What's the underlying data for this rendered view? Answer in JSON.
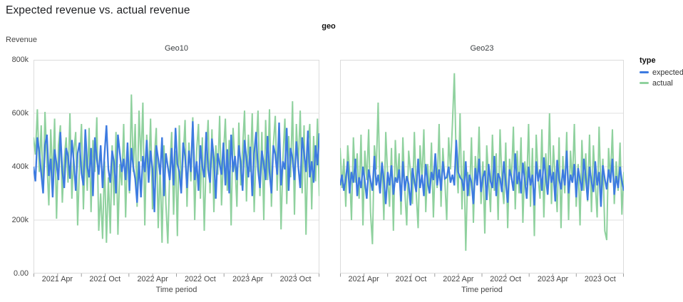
{
  "page": {
    "title": "Expected revenue vs. actual revenue"
  },
  "colors": {
    "expected": "#3d7be0",
    "actual": "#8fd19e",
    "grid": "#e2e2e2",
    "frame": "#dcdcdc",
    "tick": "#9e9e9e",
    "axis_text": "#464646",
    "title_text": "#202124"
  },
  "chart_data": {
    "type": "line",
    "title": "Expected revenue vs. actual revenue",
    "facet_field": "geo",
    "facet_titles": [
      "Geo10",
      "Geo23"
    ],
    "ylabel": "Revenue",
    "xlabel": "Time period",
    "ylim_k": [
      0,
      800
    ],
    "y_ticks": [
      "800k",
      "600k",
      "400k",
      "200k",
      "0.00"
    ],
    "grid_values_k": [
      600,
      400,
      200
    ],
    "x_range_months": 36,
    "x_minor_tick_step_months": 3,
    "x_label_months": [
      3,
      9,
      15,
      21,
      27,
      33
    ],
    "x_tick_labels": [
      "2021 Apr",
      "2021 Oct",
      "2022 Apr",
      "2022 Oct",
      "2023 Apr",
      "2023 Oct"
    ],
    "x_unit": "weekly points, Jan 2021 - Dec 2023",
    "value_unit": "thousands (k)",
    "legend": {
      "title": "type",
      "entries": [
        {
          "label": "expected",
          "color": "#3d7be0"
        },
        {
          "label": "actual",
          "color": "#8fd19e"
        }
      ]
    },
    "facets": [
      {
        "title": "Geo10",
        "series": [
          {
            "name": "expected",
            "color": "#3d7be0",
            "width": 2.3,
            "values": [
              400,
              345,
              510,
              455,
              375,
              300,
              480,
              520,
              365,
              430,
              285,
              465,
              410,
              350,
              530,
              385,
              320,
              470,
              440,
              355,
              500,
              420,
              310,
              450,
              490,
              375,
              330,
              540,
              400,
              360,
              470,
              290,
              510,
              430,
              370,
              480,
              320,
              445,
              555,
              390,
              340,
              460,
              415,
              300,
              520,
              450,
              380,
              430,
              350,
              490,
              310,
              470,
              400,
              355,
              265,
              420,
              285,
              440,
              380,
              500,
              340,
              460,
              390,
              230,
              480,
              430,
              370,
              510,
              290,
              450,
              400,
              350,
              470,
              330,
              545,
              410,
              380,
              300,
              490,
              440,
              320,
              460,
              380,
              570,
              350,
              420,
              310,
              480,
              400,
              360,
              530,
              390,
              340,
              505,
              430,
              280,
              450,
              410,
              370,
              490,
              330,
              465,
              300,
              520,
              380,
              440,
              350,
              480,
              410,
              310,
              500,
              430,
              360,
              475,
              290,
              450,
              530,
              390,
              320,
              460,
              410,
              350,
              515,
              380,
              300,
              480,
              445,
              370,
              565,
              330,
              420,
              390,
              545,
              310,
              470,
              430,
              350,
              495,
              400,
              320,
              510,
              450,
              380,
              535,
              360,
              420,
              340,
              480,
              405,
              525
            ]
          },
          {
            "name": "actual",
            "color": "#8fd19e",
            "width": 2.0,
            "values": [
              510,
              445,
              615,
              380,
              555,
              300,
              605,
              420,
              255,
              540,
              350,
              580,
              205,
              480,
              555,
              265,
              430,
              510,
              340,
              600,
              280,
              455,
              530,
              180,
              420,
              560,
              240,
              480,
              310,
              545,
              230,
              500,
              380,
              585,
              160,
              300,
              130,
              420,
              115,
              360,
              150,
              480,
              255,
              530,
              145,
              410,
              330,
              560,
              210,
              470,
              300,
              670,
              380,
              560,
              250,
              610,
              420,
              640,
              180,
              520,
              360,
              580,
              240,
              440,
              545,
              170,
              400,
              115,
              480,
              260,
              112,
              390,
              530,
              220,
              460,
              140,
              555,
              310,
              430,
              575,
              250,
              490,
              345,
              585,
              200,
              460,
              560,
              280,
              510,
              160,
              430,
              575,
              300,
              540,
              230,
              480,
              370,
              590,
              255,
              440,
              580,
              310,
              500,
              180,
              545,
              410,
              250,
              565,
              330,
              470,
              610,
              270,
              520,
              380,
              600,
              230,
              460,
              610,
              290,
              530,
              200,
              575,
              350,
              615,
              250,
              480,
              590,
              310,
              545,
              165,
              430,
              580,
              260,
              515,
              360,
              645,
              220,
              560,
              400,
              610,
              300,
              555,
              145,
              480,
              560,
              240,
              515,
              345,
              580,
              290
            ]
          }
        ]
      },
      {
        "title": "Geo23",
        "series": [
          {
            "name": "expected",
            "color": "#3d7be0",
            "width": 2.3,
            "values": [
              330,
              370,
              310,
              355,
              420,
              300,
              380,
              340,
              430,
              290,
              360,
              320,
              400,
              345,
              280,
              390,
              350,
              310,
              440,
              330,
              370,
              300,
              415,
              350,
              260,
              380,
              330,
              405,
              295,
              360,
              340,
              390,
              270,
              420,
              310,
              365,
              335,
              255,
              395,
              345,
              305,
              430,
              320,
              370,
              290,
              410,
              340,
              300,
              380,
              350,
              450,
              330,
              390,
              310,
              420,
              355,
              360,
              400,
              340,
              370,
              330,
              500,
              380,
              360,
              350,
              310,
              420,
              290,
              370,
              340,
              260,
              395,
              330,
              430,
              305,
              360,
              385,
              275,
              410,
              345,
              320,
              440,
              290,
              375,
              355,
              305,
              420,
              340,
              265,
              390,
              360,
              310,
              450,
              335,
              380,
              300,
              415,
              350,
              280,
              400,
              330,
              370,
              255,
              420,
              345,
              390,
              310,
              435,
              360,
              295,
              405,
              340,
              380,
              270,
              425,
              355,
              315,
              390,
              330,
              460,
              300,
              370,
              340,
              410,
              285,
              395,
              350,
              310,
              430,
              360,
              275,
              400,
              345,
              305,
              420,
              330,
              380,
              250,
              405,
              355,
              315,
              390,
              340,
              430,
              295,
              365,
              320,
              400,
              345,
              310
            ]
          },
          {
            "name": "actual",
            "color": "#8fd19e",
            "width": 2.0,
            "values": [
              470,
              320,
              430,
              250,
              480,
              380,
              200,
              510,
              340,
              450,
              280,
              520,
              180,
              460,
              350,
              540,
              230,
              110,
              480,
              390,
              640,
              300,
              420,
              200,
              530,
              360,
              250,
              470,
              160,
              500,
              340,
              450,
              220,
              510,
              310,
              180,
              460,
              380,
              260,
              530,
              300,
              170,
              480,
              350,
              540,
              230,
              410,
              300,
              490,
              210,
              430,
              320,
              560,
              250,
              470,
              350,
              200,
              510,
              390,
              560,
              750,
              420,
              300,
              600,
              240,
              460,
              85,
              380,
              290,
              510,
              190,
              440,
              330,
              550,
              260,
              420,
              150,
              480,
              360,
              230,
              520,
              310,
              450,
              200,
              540,
              340,
              260,
              490,
              170,
              430,
              350,
              550,
              240,
              460,
              300,
              510,
              190,
              420,
              330,
              560,
              250,
              470,
              140,
              520,
              360,
              280,
              540,
              210,
              450,
              320,
              600,
              260,
              480,
              350,
              230,
              510,
              170,
              440,
              300,
              530,
              200,
              460,
              340,
              560,
              250,
              410,
              180,
              500,
              310,
              450,
              270,
              520,
              230,
              480,
              340,
              210,
              550,
              300,
              430,
              160,
              125,
              470,
              350,
              540,
              260,
              420,
              310,
              490,
              220,
              380
            ]
          }
        ]
      }
    ]
  }
}
